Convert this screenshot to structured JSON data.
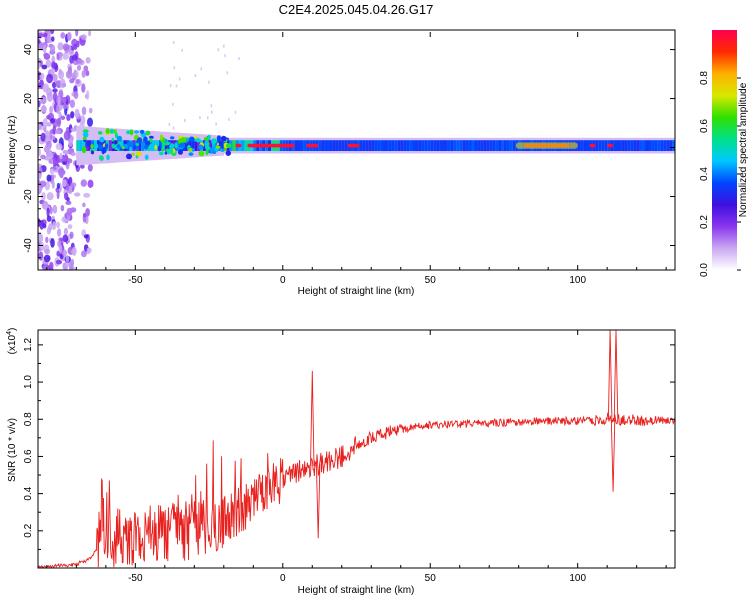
{
  "title": "C2E4.2025.045.04.26.G17",
  "chart_data": [
    {
      "type": "heatmap",
      "id": "spectrogram",
      "xlabel": "Height of straight line (km)",
      "ylabel": "Frequency (Hz)",
      "xlim": [
        -83,
        133
      ],
      "ylim": [
        -50,
        48
      ],
      "xticks": [
        -50,
        0,
        50,
        100
      ],
      "yticks": [
        -40,
        -20,
        0,
        20,
        40
      ],
      "grid": false,
      "colorbar": {
        "label": "Normalized spectral amplitude",
        "range": [
          0.0,
          1.0
        ],
        "ticks": [
          0.0,
          0.2,
          0.4,
          0.6,
          0.8
        ],
        "tick_labels": [
          "0.0",
          "0.2",
          "0.4",
          "0.6",
          "0.8"
        ],
        "colormap": [
          "#ffffff",
          "#c9a8f2",
          "#8a35ee",
          "#3d10e0",
          "#0046ff",
          "#00c8ff",
          "#00e08a",
          "#30e000",
          "#d8e800",
          "#ffb000",
          "#ff2a00",
          "#ff0050"
        ]
      },
      "features": {
        "noise_region_x": [
          -83,
          -65
        ],
        "scattered_region_x": [
          -65,
          -20
        ],
        "line_center_hz": 0.8,
        "line_halfwidth_hz": 4,
        "peak_amplitude_region_x": [
          82,
          97
        ]
      }
    },
    {
      "type": "line",
      "id": "snr",
      "xlabel": "Height of straight line (km)",
      "ylabel": "SNR (10 * v/v)",
      "y_multiplier_label": "(x10",
      "y_multiplier_exponent": "4",
      "y_multiplier_close": ")",
      "xlim": [
        -83,
        133
      ],
      "ylim": [
        0.0,
        1.28
      ],
      "xticks": [
        -50,
        0,
        50,
        100
      ],
      "yticks": [
        0.2,
        0.4,
        0.6,
        0.8,
        1.0,
        1.2
      ],
      "ytick_labels": [
        "0.2",
        "0.4",
        "0.6",
        "0.8",
        "1.0",
        "1.2"
      ],
      "grid": false,
      "series": [
        {
          "name": "SNR",
          "color": "#e8201e",
          "trend": [
            [
              -83,
              0.0
            ],
            [
              -70,
              0.02
            ],
            [
              -65,
              0.05
            ],
            [
              -62,
              0.14
            ],
            [
              -55,
              0.15
            ],
            [
              -45,
              0.17
            ],
            [
              -35,
              0.18
            ],
            [
              -25,
              0.2
            ],
            [
              -18,
              0.26
            ],
            [
              -10,
              0.34
            ],
            [
              -4,
              0.42
            ],
            [
              2,
              0.5
            ],
            [
              8,
              0.54
            ],
            [
              15,
              0.57
            ],
            [
              20,
              0.6
            ],
            [
              25,
              0.66
            ],
            [
              30,
              0.7
            ],
            [
              38,
              0.74
            ],
            [
              50,
              0.77
            ],
            [
              70,
              0.78
            ],
            [
              90,
              0.79
            ],
            [
              105,
              0.79
            ],
            [
              110,
              0.8
            ],
            [
              133,
              0.79
            ]
          ],
          "spikes": [
            [
              10,
              1.06
            ],
            [
              12,
              0.16
            ],
            [
              111,
              1.28
            ],
            [
              112,
              0.41
            ],
            [
              113,
              1.28
            ]
          ]
        }
      ]
    }
  ]
}
